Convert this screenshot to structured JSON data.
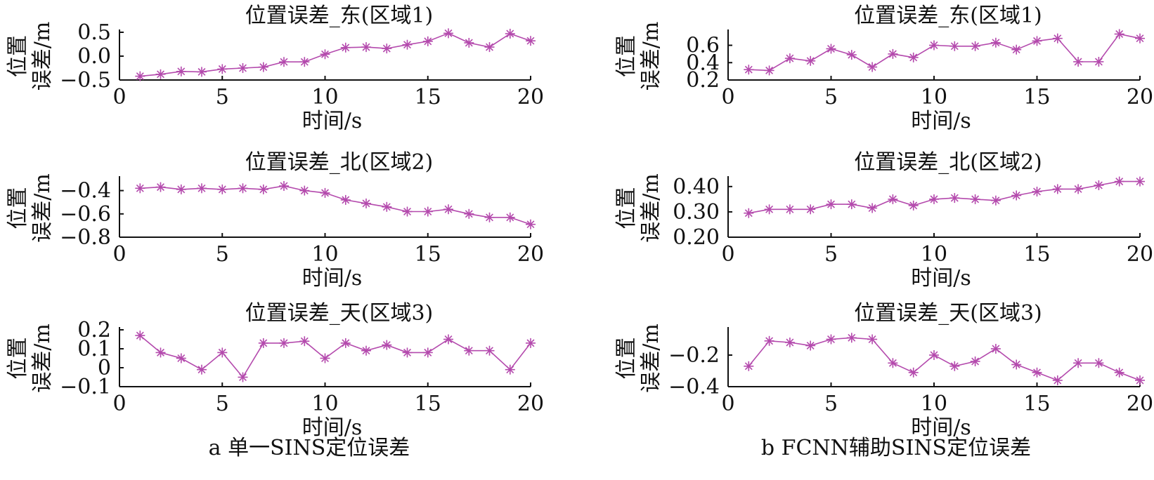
{
  "colors": {
    "series": "#b44aad",
    "axis": "#111111"
  },
  "captions": [
    "a 单一SINS定位误差",
    "b FCNN辅助SINS定位误差"
  ],
  "chart_data": [
    {
      "type": "line",
      "title": "位置误差_东(区域1)",
      "xlabel": "时间/s",
      "ylabel_top": "位置",
      "ylabel_bottom": "误差/m",
      "xlim": [
        0,
        20
      ],
      "xticks": [
        "0",
        "5",
        "10",
        "15",
        "20"
      ],
      "ylim": [
        -0.5,
        0.5
      ],
      "yticks": [
        {
          "v": -0.5,
          "t": "−0.5"
        },
        {
          "v": 0,
          "t": "0.0"
        },
        {
          "v": 0.5,
          "t": "0.5"
        }
      ],
      "x": [
        1,
        2,
        3,
        4,
        5,
        6,
        7,
        8,
        9,
        10,
        11,
        12,
        13,
        14,
        15,
        16,
        17,
        18,
        19,
        20
      ],
      "values": [
        -0.42,
        -0.38,
        -0.32,
        -0.33,
        -0.27,
        -0.25,
        -0.23,
        -0.12,
        -0.12,
        0.04,
        0.18,
        0.19,
        0.16,
        0.24,
        0.31,
        0.48,
        0.28,
        0.19,
        0.47,
        0.32
      ]
    },
    {
      "type": "line",
      "title": "位置误差_北(区域2)",
      "xlabel": "时间/s",
      "ylabel_top": "位置",
      "ylabel_bottom": "误差/m",
      "xlim": [
        0,
        20
      ],
      "xticks": [
        "0",
        "5",
        "10",
        "15",
        "20"
      ],
      "ylim": [
        -0.8,
        -0.3
      ],
      "yticks": [
        {
          "v": -0.8,
          "t": "−0.8"
        },
        {
          "v": -0.6,
          "t": "−0.6"
        },
        {
          "v": -0.4,
          "t": "−0.4"
        }
      ],
      "x": [
        1,
        2,
        3,
        4,
        5,
        6,
        7,
        8,
        9,
        10,
        11,
        12,
        13,
        14,
        15,
        16,
        17,
        18,
        19,
        20
      ],
      "values": [
        -0.38,
        -0.37,
        -0.39,
        -0.38,
        -0.39,
        -0.38,
        -0.39,
        -0.36,
        -0.4,
        -0.42,
        -0.48,
        -0.51,
        -0.54,
        -0.58,
        -0.58,
        -0.56,
        -0.6,
        -0.63,
        -0.63,
        -0.69
      ]
    },
    {
      "type": "line",
      "title": "位置误差_天(区域3)",
      "xlabel": "时间/s",
      "ylabel_top": "位置",
      "ylabel_bottom": "误差/m",
      "xlim": [
        0,
        20
      ],
      "xticks": [
        "0",
        "5",
        "10",
        "15",
        "20"
      ],
      "ylim": [
        -0.1,
        0.2
      ],
      "yticks": [
        {
          "v": -0.1,
          "t": "−0.1"
        },
        {
          "v": 0,
          "t": "0"
        },
        {
          "v": 0.1,
          "t": "0.1"
        },
        {
          "v": 0.2,
          "t": "0.2"
        }
      ],
      "x": [
        1,
        2,
        3,
        4,
        5,
        6,
        7,
        8,
        9,
        10,
        11,
        12,
        13,
        14,
        15,
        16,
        17,
        18,
        19,
        20
      ],
      "values": [
        0.17,
        0.08,
        0.05,
        -0.01,
        0.08,
        -0.05,
        0.13,
        0.13,
        0.14,
        0.05,
        0.13,
        0.09,
        0.12,
        0.08,
        0.08,
        0.15,
        0.09,
        0.09,
        -0.01,
        0.13
      ]
    },
    {
      "type": "line",
      "title": "位置误差_东(区域1)",
      "xlabel": "时间/s",
      "ylabel_top": "位置",
      "ylabel_bottom": "误差/m",
      "xlim": [
        0,
        20
      ],
      "xticks": [
        "0",
        "5",
        "10",
        "15",
        "20"
      ],
      "ylim": [
        0.2,
        0.75
      ],
      "yticks": [
        {
          "v": 0.2,
          "t": "0.2"
        },
        {
          "v": 0.4,
          "t": "0.4"
        },
        {
          "v": 0.6,
          "t": "0.6"
        }
      ],
      "x": [
        1,
        2,
        3,
        4,
        5,
        6,
        7,
        8,
        9,
        10,
        11,
        12,
        13,
        14,
        15,
        16,
        17,
        18,
        19,
        20
      ],
      "values": [
        0.32,
        0.31,
        0.45,
        0.42,
        0.56,
        0.49,
        0.35,
        0.5,
        0.46,
        0.6,
        0.59,
        0.59,
        0.63,
        0.55,
        0.65,
        0.68,
        0.41,
        0.41,
        0.73,
        0.68
      ]
    },
    {
      "type": "line",
      "title": "位置误差_北(区域2)",
      "xlabel": "时间/s",
      "ylabel_top": "位置",
      "ylabel_bottom": "误差/m",
      "xlim": [
        0,
        20
      ],
      "xticks": [
        "0",
        "5",
        "10",
        "15",
        "20"
      ],
      "ylim": [
        0.2,
        0.43
      ],
      "yticks": [
        {
          "v": 0.2,
          "t": "0.20"
        },
        {
          "v": 0.3,
          "t": "0.30"
        },
        {
          "v": 0.4,
          "t": "0.40"
        }
      ],
      "x": [
        1,
        2,
        3,
        4,
        5,
        6,
        7,
        8,
        9,
        10,
        11,
        12,
        13,
        14,
        15,
        16,
        17,
        18,
        19,
        20
      ],
      "values": [
        0.295,
        0.31,
        0.31,
        0.31,
        0.33,
        0.33,
        0.315,
        0.35,
        0.325,
        0.35,
        0.355,
        0.35,
        0.345,
        0.365,
        0.38,
        0.39,
        0.39,
        0.405,
        0.42,
        0.42
      ]
    },
    {
      "type": "line",
      "title": "位置误差_天(区域3)",
      "xlabel": "时间/s",
      "ylabel_top": "位置",
      "ylabel_bottom": "误差/m",
      "xlim": [
        0,
        20
      ],
      "xticks": [
        "0",
        "5",
        "10",
        "15",
        "20"
      ],
      "ylim": [
        -0.4,
        -0.04
      ],
      "yticks": [
        {
          "v": -0.4,
          "t": "−0.4"
        },
        {
          "v": -0.2,
          "t": "−0.2"
        }
      ],
      "x": [
        1,
        2,
        3,
        4,
        5,
        6,
        7,
        8,
        9,
        10,
        11,
        12,
        13,
        14,
        15,
        16,
        17,
        18,
        19,
        20
      ],
      "values": [
        -0.27,
        -0.11,
        -0.12,
        -0.14,
        -0.1,
        -0.09,
        -0.1,
        -0.25,
        -0.31,
        -0.2,
        -0.27,
        -0.24,
        -0.16,
        -0.26,
        -0.31,
        -0.36,
        -0.25,
        -0.25,
        -0.31,
        -0.36
      ]
    }
  ]
}
